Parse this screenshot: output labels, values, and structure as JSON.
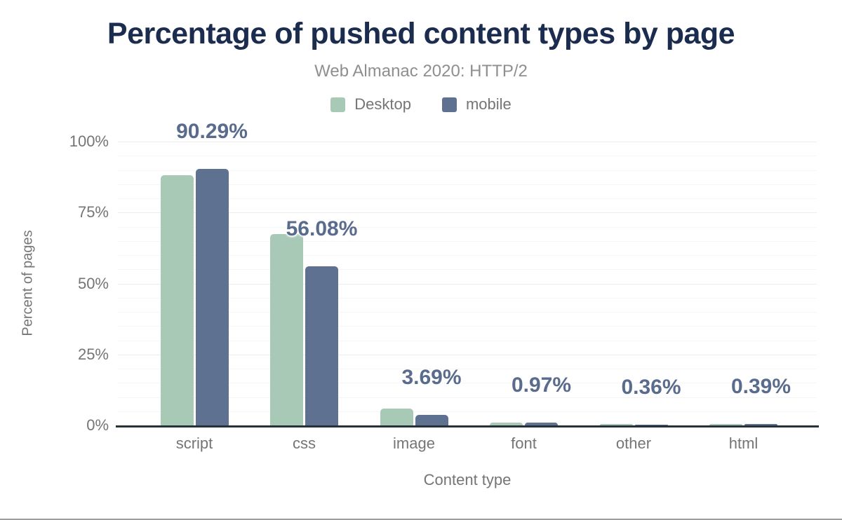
{
  "chart_data": {
    "type": "bar",
    "title": "Percentage of pushed content types by page",
    "subtitle": "Web Almanac 2020: HTTP/2",
    "xlabel": "Content type",
    "ylabel": "Percent of pages",
    "categories": [
      "script",
      "css",
      "image",
      "font",
      "other",
      "html"
    ],
    "series": [
      {
        "name": "Desktop",
        "color": "#a9c9b7",
        "values": [
          88.1,
          67.4,
          5.9,
          1.0,
          0.55,
          0.5
        ]
      },
      {
        "name": "mobile",
        "color": "#5e7190",
        "values": [
          90.29,
          56.08,
          3.69,
          0.97,
          0.36,
          0.39
        ]
      }
    ],
    "annotations": [
      "90.29%",
      "56.08%",
      "3.69%",
      "0.97%",
      "0.36%",
      "0.39%"
    ],
    "annotation_series": "mobile",
    "ylim": [
      0,
      100
    ],
    "yticks": [
      "0%",
      "25%",
      "50%",
      "75%",
      "100%"
    ],
    "ytick_values": [
      0,
      25,
      50,
      75,
      100
    ],
    "grid": "horizontal, minor every 5%, major every 25%",
    "legend_position": "top center",
    "colors": {
      "title": "#1b2c4e",
      "subtitle": "#8f8f8f",
      "axis_text": "#757575",
      "annotation_text": "#5a6c8d",
      "axis_line": "#263238",
      "desktop_bar": "#a9c9b7",
      "mobile_bar": "#5e7190"
    }
  }
}
